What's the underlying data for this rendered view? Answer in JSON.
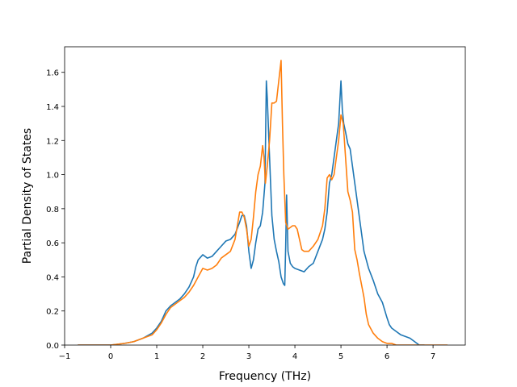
{
  "chart_data": {
    "type": "line",
    "title": "",
    "xlabel": "Frequency (THz)",
    "ylabel": "Partial Density of States",
    "xlim": [
      -1.0,
      7.7
    ],
    "ylim": [
      0.0,
      1.75
    ],
    "xticks": [
      -1,
      0,
      1,
      2,
      3,
      4,
      5,
      6,
      7
    ],
    "yticks": [
      0.0,
      0.2,
      0.4,
      0.6,
      0.8,
      1.0,
      1.2,
      1.4,
      1.6
    ],
    "xtick_labels": [
      "−1",
      "0",
      "1",
      "2",
      "3",
      "4",
      "5",
      "6",
      "7"
    ],
    "ytick_labels": [
      "0.0",
      "0.2",
      "0.4",
      "0.6",
      "0.8",
      "1.0",
      "1.2",
      "1.4",
      "1.6"
    ],
    "grid": false,
    "legend": null,
    "series": [
      {
        "color": "#1f77b4",
        "x": [
          -0.7,
          0.0,
          0.3,
          0.5,
          0.7,
          0.9,
          1.0,
          1.1,
          1.2,
          1.3,
          1.5,
          1.6,
          1.7,
          1.75,
          1.8,
          1.85,
          1.9,
          2.0,
          2.1,
          2.2,
          2.3,
          2.4,
          2.5,
          2.6,
          2.7,
          2.8,
          2.85,
          2.9,
          2.95,
          3.0,
          3.05,
          3.1,
          3.15,
          3.2,
          3.25,
          3.3,
          3.35,
          3.38,
          3.4,
          3.45,
          3.5,
          3.55,
          3.6,
          3.65,
          3.7,
          3.75,
          3.78,
          3.8,
          3.82,
          3.85,
          3.9,
          3.95,
          4.0,
          4.1,
          4.2,
          4.3,
          4.4,
          4.5,
          4.6,
          4.65,
          4.7,
          4.75,
          4.8,
          4.85,
          4.9,
          4.95,
          4.98,
          5.0,
          5.03,
          5.06,
          5.1,
          5.15,
          5.2,
          5.25,
          5.3,
          5.35,
          5.4,
          5.45,
          5.5,
          5.6,
          5.7,
          5.8,
          5.9,
          6.0,
          6.05,
          6.1,
          6.2,
          6.3,
          6.4,
          6.5,
          6.55,
          6.6,
          6.65,
          6.7,
          6.8
        ],
        "y": [
          0.0,
          0.0,
          0.01,
          0.02,
          0.04,
          0.07,
          0.1,
          0.14,
          0.2,
          0.23,
          0.27,
          0.3,
          0.34,
          0.37,
          0.4,
          0.46,
          0.5,
          0.53,
          0.51,
          0.52,
          0.55,
          0.58,
          0.61,
          0.62,
          0.65,
          0.72,
          0.76,
          0.76,
          0.7,
          0.55,
          0.45,
          0.5,
          0.6,
          0.68,
          0.7,
          0.78,
          0.95,
          1.55,
          1.45,
          1.1,
          0.76,
          0.62,
          0.55,
          0.49,
          0.4,
          0.36,
          0.35,
          0.58,
          0.88,
          0.55,
          0.48,
          0.46,
          0.45,
          0.44,
          0.43,
          0.46,
          0.48,
          0.55,
          0.62,
          0.68,
          0.78,
          0.95,
          1.0,
          1.1,
          1.2,
          1.3,
          1.45,
          1.55,
          1.38,
          1.3,
          1.25,
          1.18,
          1.15,
          1.05,
          0.95,
          0.85,
          0.75,
          0.65,
          0.55,
          0.45,
          0.38,
          0.3,
          0.25,
          0.16,
          0.12,
          0.1,
          0.08,
          0.06,
          0.05,
          0.04,
          0.03,
          0.02,
          0.01,
          0.0,
          0.0
        ]
      },
      {
        "color": "#ff7f0e",
        "x": [
          -0.7,
          0.0,
          0.3,
          0.5,
          0.7,
          0.9,
          1.0,
          1.1,
          1.2,
          1.3,
          1.5,
          1.6,
          1.7,
          1.8,
          1.9,
          2.0,
          2.1,
          2.2,
          2.3,
          2.4,
          2.5,
          2.6,
          2.7,
          2.75,
          2.8,
          2.85,
          2.9,
          2.95,
          3.0,
          3.05,
          3.1,
          3.15,
          3.2,
          3.25,
          3.3,
          3.33,
          3.36,
          3.4,
          3.45,
          3.5,
          3.55,
          3.6,
          3.65,
          3.7,
          3.73,
          3.76,
          3.8,
          3.85,
          3.9,
          3.95,
          4.0,
          4.05,
          4.1,
          4.15,
          4.2,
          4.3,
          4.4,
          4.5,
          4.6,
          4.65,
          4.7,
          4.75,
          4.8,
          4.85,
          4.9,
          4.95,
          5.0,
          5.05,
          5.1,
          5.15,
          5.2,
          5.25,
          5.3,
          5.35,
          5.4,
          5.45,
          5.5,
          5.55,
          5.6,
          5.7,
          5.8,
          5.9,
          6.0,
          6.1,
          6.2,
          6.3,
          6.5,
          6.7,
          7.0,
          7.3
        ],
        "y": [
          0.0,
          0.0,
          0.01,
          0.02,
          0.04,
          0.06,
          0.09,
          0.13,
          0.18,
          0.22,
          0.26,
          0.28,
          0.31,
          0.35,
          0.4,
          0.45,
          0.44,
          0.45,
          0.47,
          0.51,
          0.53,
          0.55,
          0.62,
          0.7,
          0.78,
          0.78,
          0.75,
          0.68,
          0.58,
          0.62,
          0.75,
          0.9,
          1.0,
          1.05,
          1.17,
          1.1,
          0.95,
          1.05,
          1.2,
          1.42,
          1.42,
          1.43,
          1.55,
          1.67,
          1.3,
          1.0,
          0.72,
          0.68,
          0.69,
          0.7,
          0.7,
          0.68,
          0.62,
          0.56,
          0.55,
          0.55,
          0.58,
          0.62,
          0.7,
          0.8,
          0.98,
          1.0,
          0.97,
          1.0,
          1.1,
          1.2,
          1.35,
          1.3,
          1.1,
          0.9,
          0.85,
          0.78,
          0.56,
          0.5,
          0.42,
          0.35,
          0.28,
          0.18,
          0.12,
          0.07,
          0.04,
          0.02,
          0.01,
          0.01,
          0.0,
          0.0,
          0.0,
          0.0,
          0.0,
          0.0
        ]
      }
    ]
  }
}
